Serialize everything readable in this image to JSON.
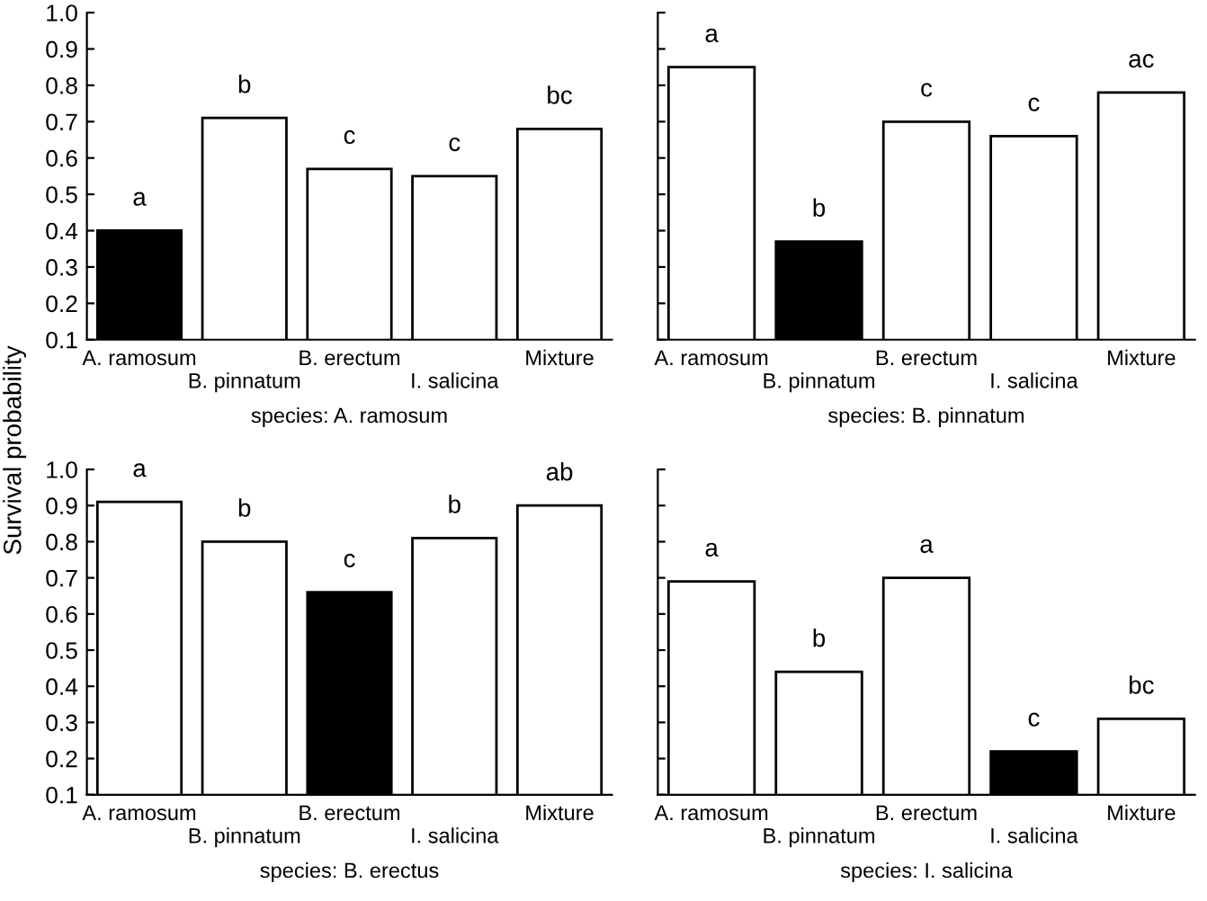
{
  "chart_data": [
    {
      "type": "bar",
      "ylabel": "Survival probability",
      "xlabel": "species: A. ramosum",
      "categories": [
        "A. ramosum",
        "B. pinnatum",
        "B. erectum",
        "I. salicina",
        "Mixture"
      ],
      "values": [
        0.4,
        0.71,
        0.57,
        0.55,
        0.68
      ],
      "colors": [
        "#000000",
        "#ffffff",
        "#ffffff",
        "#ffffff",
        "#ffffff"
      ],
      "ylim": [
        0.1,
        1.0
      ],
      "yticks": [
        0.1,
        0.2,
        0.3,
        0.4,
        0.5,
        0.6,
        0.7,
        0.8,
        0.9,
        {
          "value": 1,
          "label": "1.0"
        }
      ],
      "grid": false,
      "annotations": [
        {
          "text": "a",
          "x": "A. ramosum",
          "y": 0.4
        },
        {
          "text": "b",
          "x": "B. pinnatum",
          "y": 0.71
        },
        {
          "text": "c",
          "x": "B. erectum",
          "y": 0.57
        },
        {
          "text": "c",
          "x": "I. salicina",
          "y": 0.55
        },
        {
          "text": "bc",
          "x": "Mixture",
          "y": 0.68
        }
      ]
    },
    {
      "type": "bar",
      "xlabel": "species: B. pinnatum",
      "categories": [
        "A. ramosum",
        "B. pinnatum",
        "B. erectum",
        "I. salicina",
        "Mixture"
      ],
      "values": [
        0.85,
        0.37,
        0.7,
        0.66,
        0.78
      ],
      "colors": [
        "#ffffff",
        "#000000",
        "#ffffff",
        "#ffffff",
        "#ffffff"
      ],
      "ylim": [
        0.1,
        1.0
      ],
      "yticks": [
        0.1,
        0.2,
        0.3,
        0.4,
        0.5,
        0.6,
        0.7,
        0.8,
        0.9,
        1.0
      ],
      "tick_labels": "x",
      "grid": false,
      "annotations": [
        {
          "text": "a",
          "x": "A. ramosum",
          "y": 0.85
        },
        {
          "text": "b",
          "x": "B. pinnatum",
          "y": 0.37
        },
        {
          "text": "c",
          "x": "B. erectum",
          "y": 0.7
        },
        {
          "text": "c",
          "x": "I. salicina",
          "y": 0.66
        },
        {
          "text": "ac",
          "x": "Mixture",
          "y": 0.78
        }
      ]
    },
    {
      "type": "bar",
      "xlabel": "species: B. erectus",
      "categories": [
        "A. ramosum",
        "B. pinnatum",
        "B. erectum",
        "I. salicina",
        "Mixture"
      ],
      "values": [
        0.91,
        0.8,
        0.66,
        0.81,
        0.9
      ],
      "colors": [
        "#ffffff",
        "#ffffff",
        "#000000",
        "#ffffff",
        "#ffffff"
      ],
      "ylim": [
        0.1,
        1.0
      ],
      "yticks": [
        0.1,
        0.2,
        0.3,
        0.4,
        0.5,
        0.6,
        0.7,
        0.8,
        0.9,
        {
          "value": 1,
          "label": "1.0"
        }
      ],
      "grid": false,
      "annotations": [
        {
          "text": "a",
          "x": "A. ramosum",
          "y": 0.91
        },
        {
          "text": "b",
          "x": "B. pinnatum",
          "y": 0.8
        },
        {
          "text": "c",
          "x": "B. erectum",
          "y": 0.66
        },
        {
          "text": "b",
          "x": "I. salicina",
          "y": 0.81
        },
        {
          "text": "ab",
          "x": "Mixture",
          "y": 0.9
        }
      ]
    },
    {
      "type": "bar",
      "xlabel": "species: I. salicina",
      "categories": [
        "A. ramosum",
        "B. pinnatum",
        "B. erectum",
        "I. salicina",
        "Mixture"
      ],
      "values": [
        0.69,
        0.44,
        0.7,
        0.22,
        0.31
      ],
      "colors": [
        "#ffffff",
        "#ffffff",
        "#ffffff",
        "#000000",
        "#ffffff"
      ],
      "ylim": [
        0.1,
        1.0
      ],
      "yticks": [
        0.1,
        0.2,
        0.3,
        0.4,
        0.5,
        0.6,
        0.7,
        0.8,
        0.9,
        1.0
      ],
      "tick_labels": "x",
      "grid": false,
      "annotations": [
        {
          "text": "a",
          "x": "A. ramosum",
          "y": 0.69
        },
        {
          "text": "b",
          "x": "B. pinnatum",
          "y": 0.44
        },
        {
          "text": "a",
          "x": "B. erectum",
          "y": 0.7
        },
        {
          "text": "c",
          "x": "I. salicina",
          "y": 0.22
        },
        {
          "text": "bc",
          "x": "Mixture",
          "y": 0.31
        }
      ]
    }
  ]
}
